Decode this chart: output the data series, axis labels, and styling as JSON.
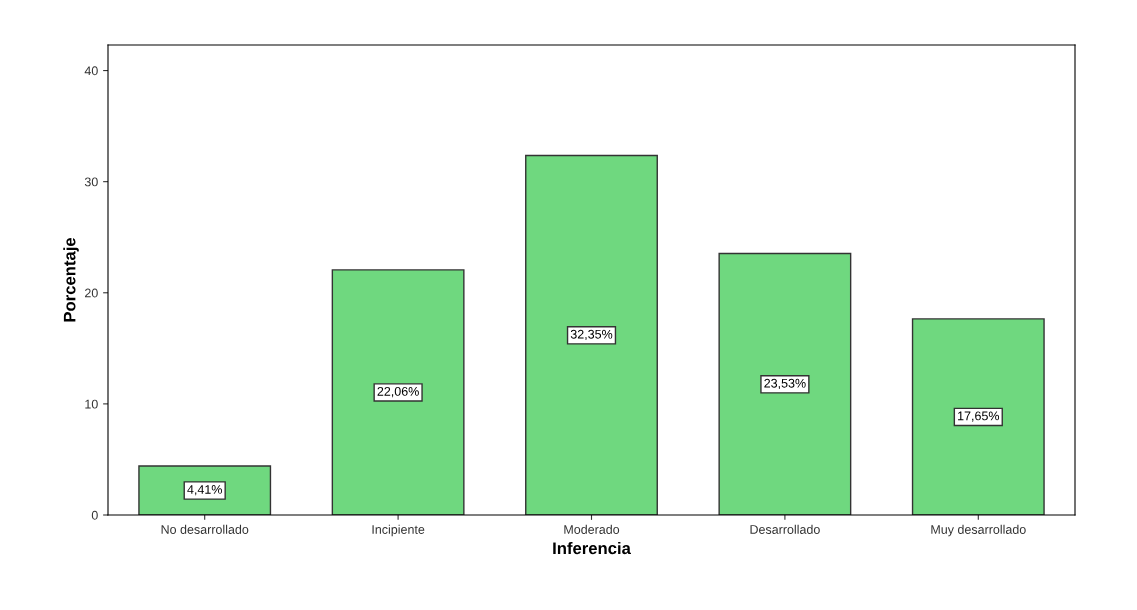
{
  "chart_data": {
    "type": "bar",
    "xlabel": "Inferencia",
    "ylabel": "Porcentaje",
    "categories": [
      "No desarrollado",
      "Incipiente",
      "Moderado",
      "Desarrollado",
      "Muy desarrollado"
    ],
    "values": [
      4.41,
      22.06,
      32.35,
      23.53,
      17.65
    ],
    "value_labels": [
      "4,41%",
      "22,06%",
      "32,35%",
      "23,53%",
      "17,65%"
    ],
    "color": "#6fd87f",
    "ylim": [
      0,
      42.3
    ],
    "yticks": [
      0,
      10,
      20,
      30,
      40
    ],
    "grid": false
  }
}
